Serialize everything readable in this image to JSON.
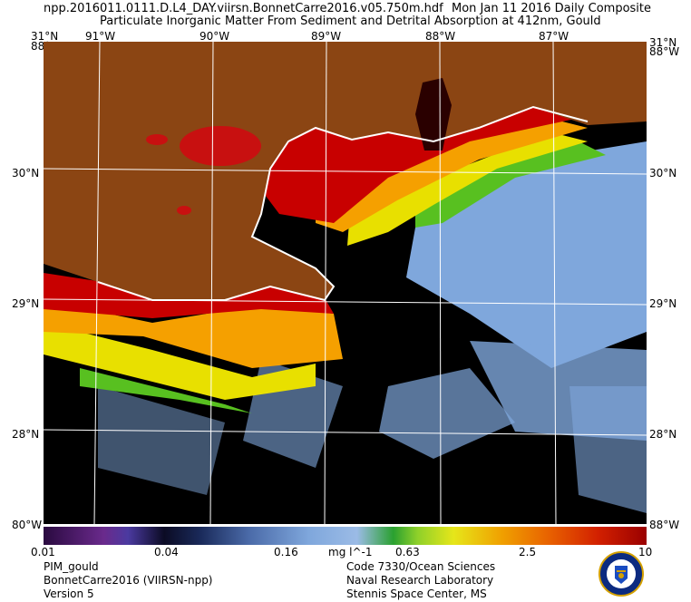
{
  "header": {
    "filename": "npp.2016011.0111.D.L4_DAY.viirsn.BonnetCarre2016.v05.750m.hdf",
    "date": "Mon Jan 11 2016 Daily Composite",
    "product": "Particulate Inorganic Matter From Sediment and Detrital Absorption at 412nm, Gould"
  },
  "map": {
    "lon_labels": [
      "91°W",
      "90°W",
      "89°W",
      "88°W",
      "87°W"
    ],
    "lat_labels": [
      "30°N",
      "29°N",
      "28°N"
    ],
    "corner_top_left": "31°N",
    "corner_top_left_lon": "88°W",
    "corner_top_right": "31°N",
    "corner_top_right_lon": "88°W",
    "corner_bottom_left": "80°W",
    "corner_bottom_right": "88°W"
  },
  "colorbar": {
    "ticks": [
      "0.01",
      "0.04",
      "0.16",
      "0.63",
      "2.5",
      "10"
    ],
    "unit": "mg l^-1",
    "colors": {
      "land": "#8b4513",
      "high": "#c80000",
      "mid": "#f5a000",
      "low": "#e8e000",
      "green": "#58c020",
      "water": "#7fa7dc",
      "cloud": "#000000"
    }
  },
  "footer": {
    "left": [
      "PIM_gould",
      "BonnetCarre2016 (VIIRSN-npp)",
      "Version 5"
    ],
    "right": [
      "Code 7330/Ocean Sciences",
      "Naval Research Laboratory",
      "Stennis Space Center, MS"
    ]
  }
}
